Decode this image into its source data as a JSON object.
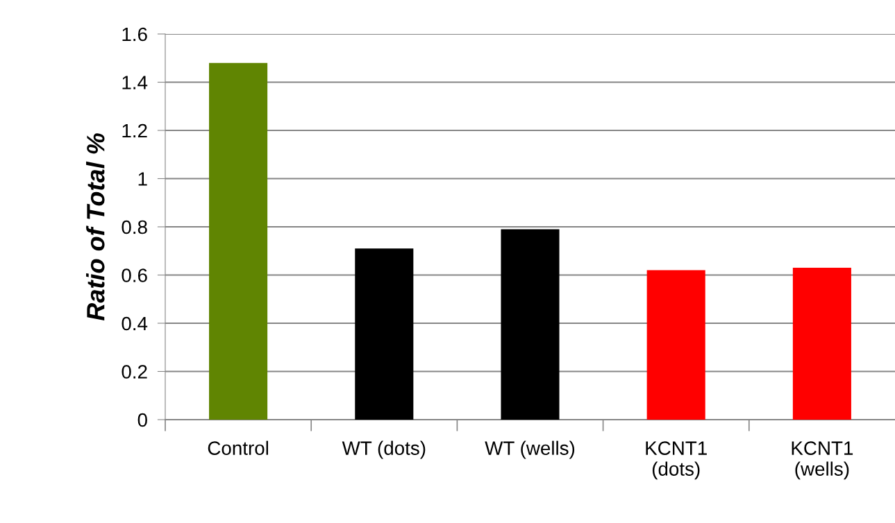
{
  "chart_data": {
    "type": "bar",
    "ylabel": "Ratio of Total %",
    "categories": [
      "Control",
      "WT (dots)",
      "WT (wells)",
      "KCNT1\n(dots)",
      "KCNT1\n(wells)"
    ],
    "values": [
      1.48,
      0.71,
      0.79,
      0.62,
      0.63
    ],
    "colors": [
      "#608502",
      "#000000",
      "#000000",
      "#ff0000",
      "#ff0000"
    ],
    "ylim": [
      0,
      1.6
    ],
    "yticks": [
      0,
      0.2,
      0.4,
      0.6,
      0.8,
      1,
      1.2,
      1.4,
      1.6
    ],
    "grid": "y",
    "legend": false
  }
}
